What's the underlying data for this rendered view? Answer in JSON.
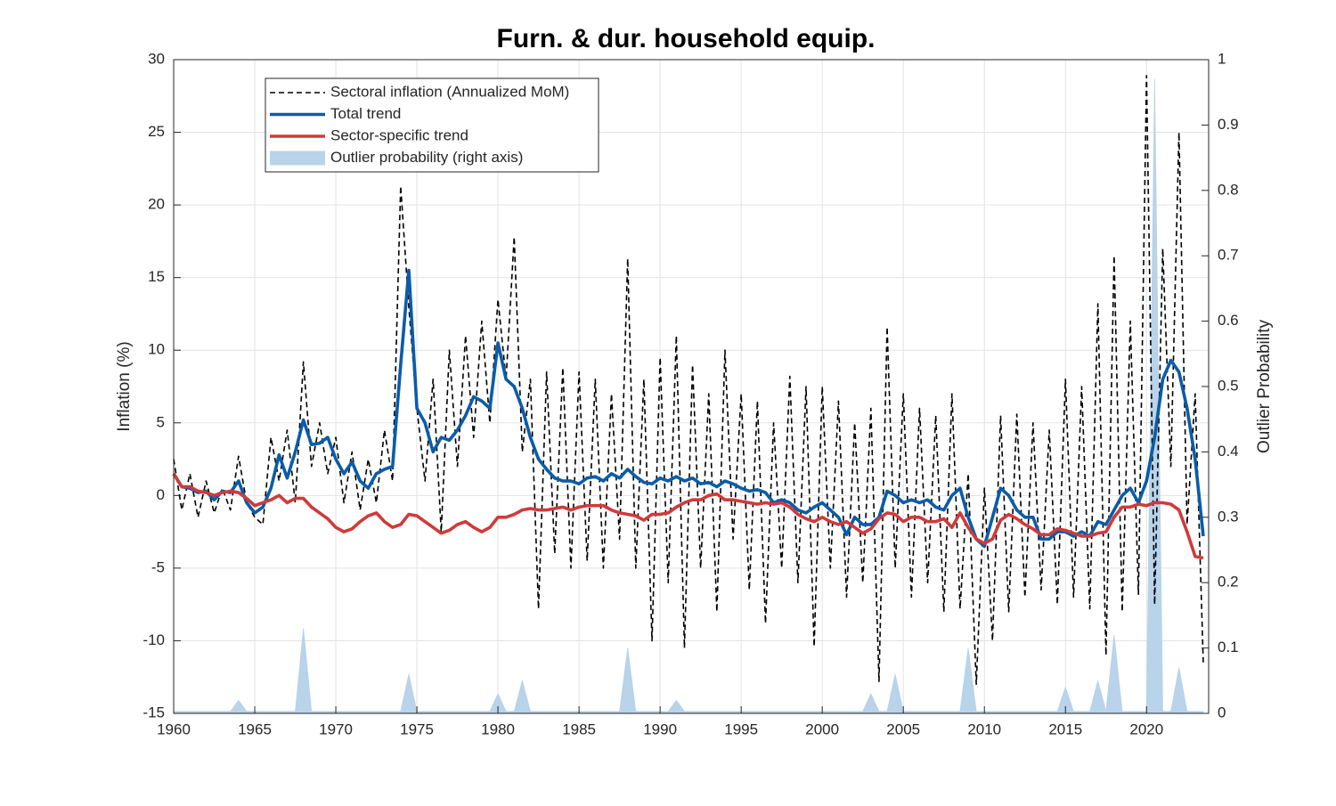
{
  "chart_data": {
    "type": "line",
    "title": "Furn. & dur. household equip.",
    "y_label": "Inflation (%)",
    "y2_label": "Outlier Probability",
    "xlim": [
      1960,
      2023.83
    ],
    "xticks": [
      1960,
      1965,
      1970,
      1975,
      1980,
      1985,
      1990,
      1995,
      2000,
      2005,
      2010,
      2015,
      2020
    ],
    "ylim": [
      -15,
      30
    ],
    "yticks": [
      -15,
      -10,
      -5,
      0,
      5,
      10,
      15,
      20,
      25,
      30
    ],
    "y2lim": [
      0,
      1
    ],
    "y2ticks": [
      0,
      0.1,
      0.2,
      0.3,
      0.4,
      0.5,
      0.6,
      0.7,
      0.8,
      0.9,
      1
    ],
    "grid": true,
    "legend": "upper left",
    "x": [
      1960,
      1960.5,
      1961,
      1961.5,
      1962,
      1962.5,
      1963,
      1963.5,
      1964,
      1964.5,
      1965,
      1965.5,
      1966,
      1966.5,
      1967,
      1967.5,
      1968,
      1968.5,
      1969,
      1969.5,
      1970,
      1970.5,
      1971,
      1971.5,
      1972,
      1972.5,
      1973,
      1973.5,
      1974,
      1974.5,
      1975,
      1975.5,
      1976,
      1976.5,
      1977,
      1977.5,
      1978,
      1978.5,
      1979,
      1979.5,
      1980,
      1980.5,
      1981,
      1981.5,
      1982,
      1982.5,
      1983,
      1983.5,
      1984,
      1984.5,
      1985,
      1985.5,
      1986,
      1986.5,
      1987,
      1987.5,
      1988,
      1988.5,
      1989,
      1989.5,
      1990,
      1990.5,
      1991,
      1991.5,
      1992,
      1992.5,
      1993,
      1993.5,
      1994,
      1994.5,
      1995,
      1995.5,
      1996,
      1996.5,
      1997,
      1997.5,
      1998,
      1998.5,
      1999,
      1999.5,
      2000,
      2000.5,
      2001,
      2001.5,
      2002,
      2002.5,
      2003,
      2003.5,
      2004,
      2004.5,
      2005,
      2005.5,
      2006,
      2006.5,
      2007,
      2007.5,
      2008,
      2008.5,
      2009,
      2009.5,
      2010,
      2010.5,
      2011,
      2011.5,
      2012,
      2012.5,
      2013,
      2013.5,
      2014,
      2014.5,
      2015,
      2015.5,
      2016,
      2016.5,
      2017,
      2017.5,
      2018,
      2018.5,
      2019,
      2019.5,
      2020,
      2020.5,
      2021,
      2021.5,
      2022,
      2022.5,
      2023,
      2023.5
    ],
    "series": [
      {
        "name": "Outlier probability (right axis)",
        "color": "#b8d3ea",
        "style": "area",
        "axis": "y2",
        "values": [
          0.003,
          0.003,
          0.003,
          0.003,
          0.003,
          0.003,
          0.003,
          0.003,
          0.02,
          0.003,
          0.003,
          0.003,
          0.003,
          0.003,
          0.003,
          0.003,
          0.13,
          0.003,
          0.003,
          0.003,
          0.003,
          0.003,
          0.003,
          0.003,
          0.003,
          0.003,
          0.003,
          0.003,
          0.003,
          0.06,
          0.003,
          0.003,
          0.003,
          0.003,
          0.003,
          0.003,
          0.003,
          0.003,
          0.003,
          0.003,
          0.03,
          0.003,
          0.003,
          0.05,
          0.003,
          0.003,
          0.003,
          0.003,
          0.003,
          0.003,
          0.003,
          0.003,
          0.003,
          0.003,
          0.003,
          0.003,
          0.1,
          0.003,
          0.003,
          0.003,
          0.003,
          0.003,
          0.02,
          0.003,
          0.003,
          0.003,
          0.003,
          0.003,
          0.003,
          0.003,
          0.003,
          0.003,
          0.003,
          0.003,
          0.003,
          0.003,
          0.003,
          0.003,
          0.003,
          0.003,
          0.003,
          0.003,
          0.003,
          0.003,
          0.003,
          0.003,
          0.03,
          0.003,
          0.003,
          0.06,
          0.003,
          0.003,
          0.003,
          0.003,
          0.003,
          0.003,
          0.003,
          0.003,
          0.1,
          0.003,
          0.003,
          0.003,
          0.003,
          0.003,
          0.003,
          0.003,
          0.003,
          0.003,
          0.003,
          0.003,
          0.04,
          0.003,
          0.003,
          0.003,
          0.05,
          0.003,
          0.12,
          0.003,
          0.003,
          0.003,
          0.003,
          0.97,
          0.003,
          0.003,
          0.07,
          0.003,
          0.003,
          0.003
        ]
      },
      {
        "name": "Sectoral inflation (Annualized MoM)",
        "color": "#000000",
        "style": "dashed",
        "values": [
          2.5,
          -1.0,
          1.5,
          -1.5,
          1.0,
          -1.2,
          0.5,
          -1.0,
          2.7,
          -0.5,
          -1.5,
          -2.0,
          4.0,
          1.0,
          4.5,
          -0.5,
          9.2,
          2.0,
          5.0,
          1.5,
          4.0,
          -0.5,
          3.0,
          -1.0,
          2.5,
          -0.5,
          4.5,
          1.0,
          21.3,
          13.0,
          6.0,
          1.0,
          8.0,
          -2.5,
          10.0,
          2.0,
          11.0,
          4.0,
          12.0,
          5.0,
          13.5,
          8.0,
          17.8,
          3.0,
          8.0,
          -7.8,
          8.5,
          -4.0,
          8.8,
          -5.0,
          8.5,
          -4.5,
          8.0,
          -5.0,
          7.0,
          -3.0,
          16.3,
          -5.0,
          8.0,
          -10.0,
          9.5,
          -6.0,
          11.0,
          -10.5,
          9.0,
          -5.0,
          7.0,
          -8.0,
          10.0,
          -3.0,
          7.0,
          -6.5,
          6.5,
          -8.8,
          5.0,
          -5.0,
          8.2,
          -6.0,
          7.5,
          -10.4,
          7.5,
          -5.0,
          6.5,
          -7.0,
          5.0,
          -6.0,
          6.0,
          -12.8,
          11.6,
          -5.0,
          7.0,
          -7.0,
          6.0,
          -6.0,
          5.5,
          -8.0,
          7.0,
          -7.8,
          1.5,
          -13.0,
          0.5,
          -10.0,
          5.5,
          -8.0,
          5.6,
          -7.0,
          5.0,
          -6.5,
          4.5,
          -7.5,
          8.0,
          -7.0,
          7.5,
          -7.8,
          13.2,
          -11.0,
          16.5,
          -8.0,
          12.0,
          -6.8,
          28.9,
          -7.5,
          17.0,
          2.0,
          25.0,
          -2.0,
          7.0,
          -11.5
        ]
      },
      {
        "name": "Total trend",
        "color": "#0b5ca8",
        "style": "solid",
        "values": [
          1.5,
          0.6,
          0.5,
          0.2,
          0.3,
          -0.3,
          0.3,
          0.2,
          1.0,
          -0.5,
          -1.2,
          -0.8,
          0.5,
          2.8,
          1.2,
          3.0,
          5.2,
          3.5,
          3.6,
          4.0,
          2.5,
          1.5,
          2.3,
          1.0,
          0.5,
          1.5,
          1.8,
          2.0,
          9.0,
          15.5,
          6.0,
          5.0,
          3.0,
          4.0,
          3.8,
          4.5,
          5.5,
          6.8,
          6.5,
          6.0,
          10.5,
          8.0,
          7.5,
          6.0,
          4.0,
          2.5,
          1.8,
          1.2,
          1.0,
          1.0,
          0.8,
          1.2,
          1.3,
          1.0,
          1.5,
          1.2,
          1.8,
          1.3,
          0.9,
          0.8,
          1.2,
          1.0,
          1.3,
          1.0,
          1.2,
          0.8,
          0.9,
          0.6,
          1.0,
          0.8,
          0.5,
          0.3,
          0.4,
          0.2,
          -0.5,
          -0.3,
          -0.5,
          -1.0,
          -1.2,
          -0.8,
          -0.5,
          -1.0,
          -1.5,
          -2.7,
          -1.5,
          -2.0,
          -2.0,
          -1.5,
          0.3,
          0.0,
          -0.5,
          -0.3,
          -0.5,
          -0.3,
          -0.8,
          -1.0,
          0.0,
          0.5,
          -1.5,
          -3.0,
          -3.5,
          -1.5,
          0.5,
          0.0,
          -1.0,
          -1.5,
          -1.5,
          -3.0,
          -3.0,
          -2.5,
          -2.5,
          -2.8,
          -2.5,
          -2.8,
          -1.8,
          -2.0,
          -1.0,
          0.0,
          0.5,
          -0.5,
          1.0,
          4.0,
          8.0,
          9.3,
          8.5,
          6.0,
          2.5,
          -2.8
        ]
      },
      {
        "name": "Sector-specific trend",
        "color": "#d03a3a",
        "style": "solid",
        "values": [
          1.5,
          0.6,
          0.6,
          0.3,
          0.2,
          0.0,
          0.2,
          0.3,
          0.2,
          -0.2,
          -0.7,
          -0.5,
          -0.3,
          0.0,
          -0.5,
          -0.2,
          -0.2,
          -0.8,
          -1.2,
          -1.6,
          -2.2,
          -2.5,
          -2.3,
          -1.8,
          -1.4,
          -1.2,
          -1.8,
          -2.2,
          -2.0,
          -1.3,
          -1.4,
          -1.8,
          -2.2,
          -2.6,
          -2.4,
          -2.0,
          -1.8,
          -2.2,
          -2.5,
          -2.2,
          -1.5,
          -1.5,
          -1.3,
          -1.0,
          -0.9,
          -1.0,
          -1.0,
          -0.9,
          -0.8,
          -1.0,
          -0.8,
          -0.7,
          -0.7,
          -0.7,
          -1.0,
          -1.2,
          -1.3,
          -1.4,
          -1.7,
          -1.3,
          -1.3,
          -1.2,
          -0.8,
          -0.5,
          -0.3,
          -0.3,
          0.0,
          0.1,
          -0.3,
          -0.3,
          -0.4,
          -0.5,
          -0.6,
          -0.5,
          -0.6,
          -0.5,
          -0.8,
          -1.3,
          -1.6,
          -1.8,
          -1.5,
          -1.8,
          -2.0,
          -1.8,
          -2.2,
          -2.6,
          -2.3,
          -1.6,
          -1.2,
          -1.3,
          -1.8,
          -1.5,
          -1.5,
          -1.8,
          -1.8,
          -1.6,
          -2.2,
          -1.2,
          -2.2,
          -3.0,
          -3.3,
          -3.0,
          -1.7,
          -1.3,
          -1.6,
          -2.0,
          -2.3,
          -2.7,
          -2.7,
          -2.3,
          -2.4,
          -2.6,
          -2.8,
          -2.8,
          -2.6,
          -2.5,
          -1.5,
          -0.8,
          -0.8,
          -0.6,
          -0.7,
          -0.5,
          -0.5,
          -0.6,
          -1.0,
          -2.5,
          -4.2,
          -4.3
        ]
      }
    ]
  }
}
